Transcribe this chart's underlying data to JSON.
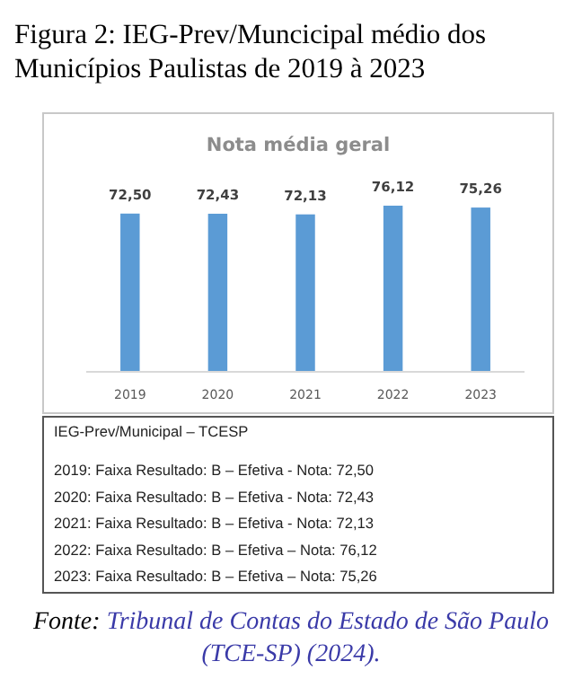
{
  "chart_data": {
    "type": "bar",
    "title": "Figura 2: IEG-Prev/Muncicipal médio dos Municípios Paulistas de 2019 à 2023",
    "subtitle": "Nota média geral",
    "categories": [
      "2019",
      "2020",
      "2021",
      "2022",
      "2023"
    ],
    "values": [
      72.5,
      72.43,
      72.13,
      76.12,
      75.26
    ],
    "color": "#5b9bd5",
    "value_labels": [
      "72,50",
      "72,43",
      "72,13",
      "76,12",
      "75,26"
    ],
    "annotations": [
      "IEG-Prev/Municipal – TCESP",
      "2019: Faixa Resultado: B – Efetiva - Nota: 72,50",
      "2020: Faixa Resultado: B – Efetiva - Nota: 72,43",
      "2021: Faixa Resultado: B – Efetiva - Nota: 72,13",
      "2022: Faixa Resultado: B – Efetiva – Nota: 76,12",
      "2023: Faixa Resultado: B – Efetiva – Nota: 75,26",
      "Fonte: Tribunal de Contas do Estado de São Paulo (TCE-SP) (2024)."
    ]
  }
}
